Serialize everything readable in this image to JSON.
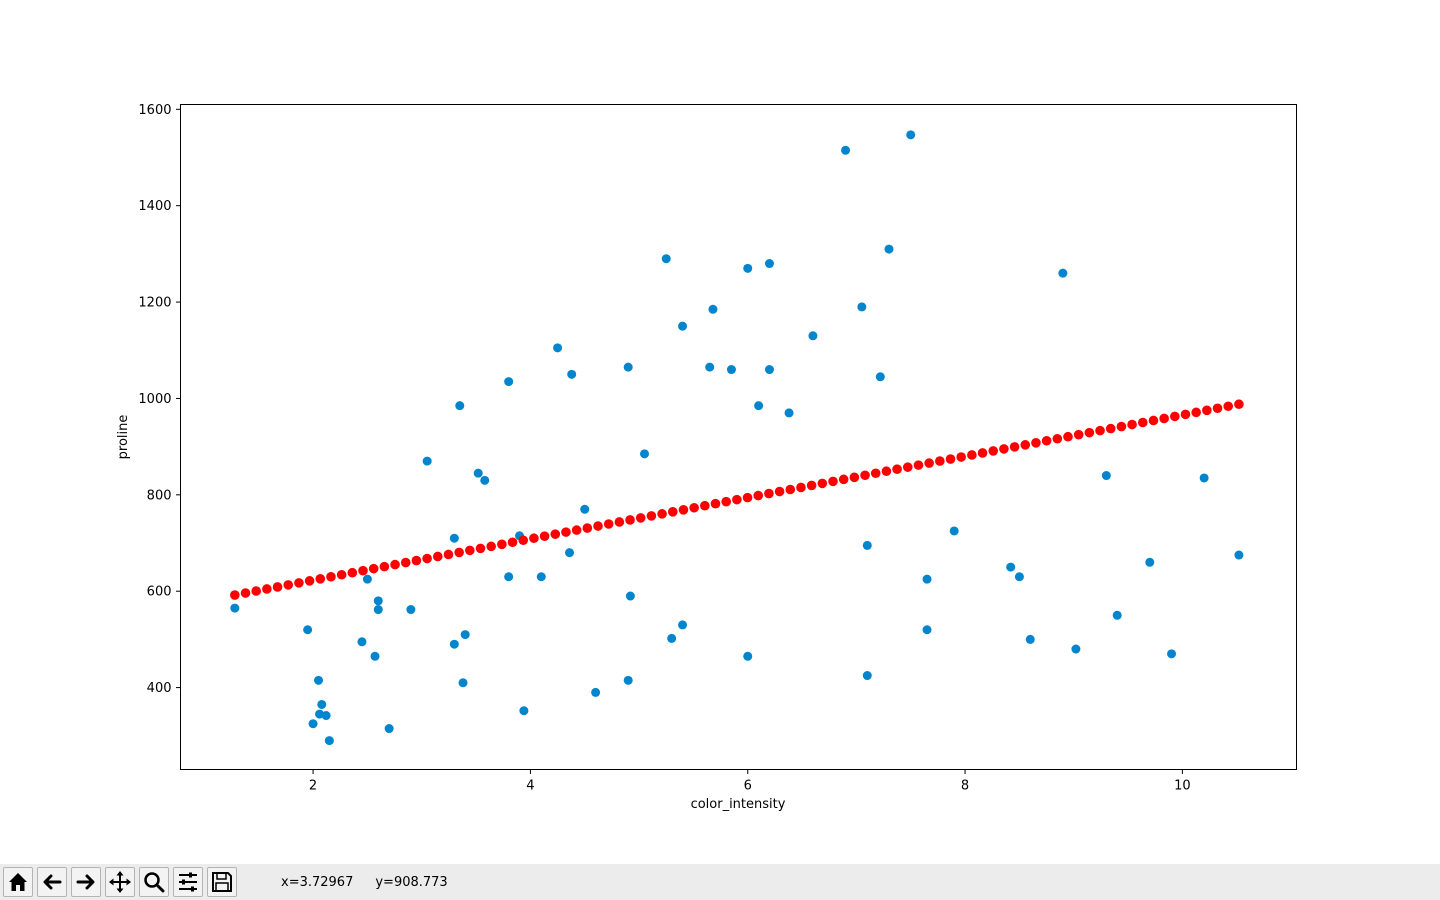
{
  "chart_data": {
    "type": "scatter",
    "xlabel": "color_intensity",
    "ylabel": "proline",
    "xlim": [
      0.78,
      11.05
    ],
    "ylim": [
      230,
      1610
    ],
    "xticks": [
      2,
      4,
      6,
      8,
      10
    ],
    "yticks": [
      400,
      600,
      800,
      1000,
      1200,
      1400,
      1600
    ],
    "grid": false,
    "series": [
      {
        "color": "#0285cc",
        "kind": "scatter",
        "points": [
          [
            1.28,
            565
          ],
          [
            1.95,
            520
          ],
          [
            2.0,
            325
          ],
          [
            2.05,
            415
          ],
          [
            2.06,
            345
          ],
          [
            2.08,
            365
          ],
          [
            2.12,
            342
          ],
          [
            2.15,
            290
          ],
          [
            2.45,
            495
          ],
          [
            2.5,
            625
          ],
          [
            2.57,
            465
          ],
          [
            2.6,
            580
          ],
          [
            2.6,
            562
          ],
          [
            2.7,
            315
          ],
          [
            2.9,
            562
          ],
          [
            3.05,
            870
          ],
          [
            3.3,
            710
          ],
          [
            3.3,
            490
          ],
          [
            3.35,
            985
          ],
          [
            3.38,
            410
          ],
          [
            3.4,
            510
          ],
          [
            3.52,
            845
          ],
          [
            3.58,
            830
          ],
          [
            3.8,
            1035
          ],
          [
            3.8,
            630
          ],
          [
            3.9,
            715
          ],
          [
            3.94,
            352
          ],
          [
            4.1,
            630
          ],
          [
            4.25,
            1105
          ],
          [
            4.36,
            680
          ],
          [
            4.38,
            1050
          ],
          [
            4.5,
            770
          ],
          [
            4.6,
            390
          ],
          [
            4.9,
            1065
          ],
          [
            4.9,
            415
          ],
          [
            4.92,
            590
          ],
          [
            5.05,
            885
          ],
          [
            5.25,
            1290
          ],
          [
            5.3,
            502
          ],
          [
            5.4,
            1150
          ],
          [
            5.4,
            530
          ],
          [
            5.65,
            1065
          ],
          [
            5.68,
            1185
          ],
          [
            5.85,
            1060
          ],
          [
            6.0,
            1270
          ],
          [
            6.0,
            465
          ],
          [
            6.1,
            985
          ],
          [
            6.2,
            1280
          ],
          [
            6.2,
            1060
          ],
          [
            6.38,
            970
          ],
          [
            6.6,
            1130
          ],
          [
            6.9,
            1515
          ],
          [
            7.05,
            1190
          ],
          [
            7.1,
            695
          ],
          [
            7.1,
            425
          ],
          [
            7.22,
            1045
          ],
          [
            7.3,
            1310
          ],
          [
            7.5,
            1547
          ],
          [
            7.65,
            625
          ],
          [
            7.65,
            520
          ],
          [
            7.9,
            725
          ],
          [
            8.42,
            650
          ],
          [
            8.5,
            630
          ],
          [
            8.6,
            500
          ],
          [
            8.9,
            1260
          ],
          [
            9.02,
            480
          ],
          [
            9.3,
            840
          ],
          [
            9.4,
            550
          ],
          [
            9.7,
            660
          ],
          [
            9.9,
            470
          ],
          [
            10.2,
            835
          ],
          [
            10.52,
            675
          ]
        ]
      },
      {
        "color": "#ff0000",
        "kind": "line-points",
        "x_start": 1.28,
        "x_end": 10.52,
        "y_start": 592,
        "y_end": 988,
        "count": 95
      }
    ]
  },
  "toolbar": {
    "buttons": [
      {
        "name": "home-button",
        "icon": "home-icon"
      },
      {
        "name": "back-button",
        "icon": "arrow-left-icon"
      },
      {
        "name": "forward-button",
        "icon": "arrow-right-icon"
      },
      {
        "name": "pan-button",
        "icon": "move-icon"
      },
      {
        "name": "zoom-button",
        "icon": "magnifier-icon"
      },
      {
        "name": "configure-subplots-button",
        "icon": "sliders-icon"
      },
      {
        "name": "save-button",
        "icon": "floppy-disk-icon"
      }
    ],
    "x_readout": "x=3.72967",
    "y_readout": "y=908.773"
  }
}
